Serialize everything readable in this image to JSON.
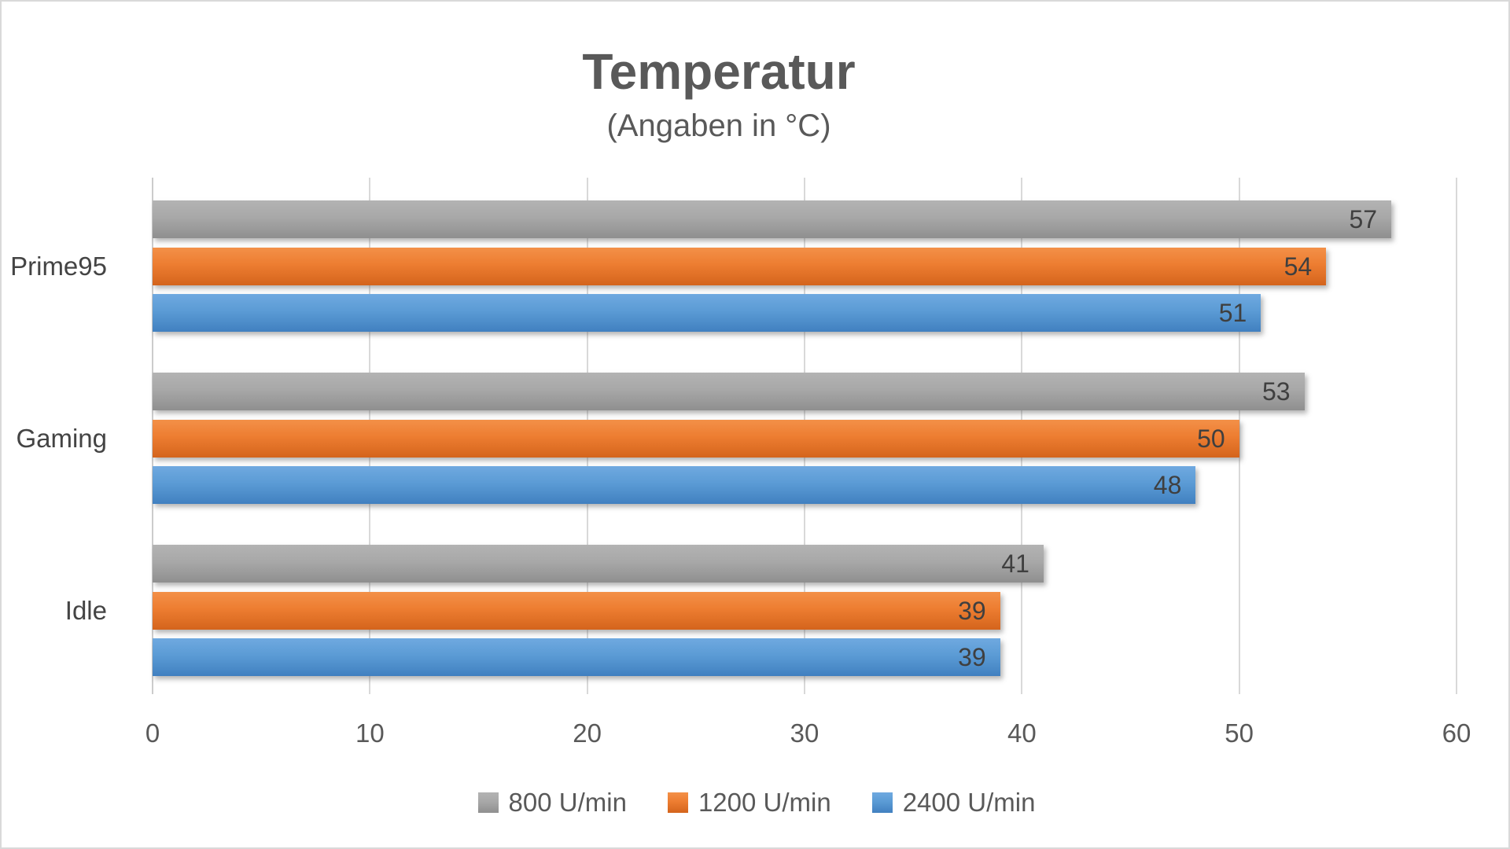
{
  "chart_data": {
    "type": "bar",
    "orientation": "horizontal",
    "title": "Temperatur",
    "subtitle": "(Angaben in °C)",
    "categories": [
      "Prime95",
      "Gaming",
      "Idle"
    ],
    "series": [
      {
        "name": "800 U/min",
        "color": "#a6a6a6",
        "gradient": [
          "#b3b3b3",
          "#a8a8a8",
          "#8f8f8f"
        ],
        "values": [
          57,
          53,
          41
        ]
      },
      {
        "name": "1200 U/min",
        "color": "#ed7d31",
        "gradient": [
          "#f39048",
          "#ed7d31",
          "#d4641c"
        ],
        "values": [
          54,
          50,
          39
        ]
      },
      {
        "name": "2400 U/min",
        "color": "#5b9bd5",
        "gradient": [
          "#6fa9e0",
          "#5b9bd5",
          "#4180c0"
        ],
        "values": [
          51,
          48,
          39
        ]
      }
    ],
    "xlabel": "",
    "ylabel": "",
    "xlim": [
      0,
      60
    ],
    "x_ticks": [
      0,
      10,
      20,
      30,
      40,
      50,
      60
    ],
    "grid": true,
    "data_labels": true,
    "legend_position": "bottom"
  },
  "colors": {
    "title_text": "#595959",
    "axis_tick_text": "#595959",
    "category_text": "#444444",
    "data_label_text": "#3f3f3f",
    "gridline": "#d9d9d9",
    "axis_line": "#cccccc",
    "chart_border": "#d9d9d9",
    "background": "#ffffff"
  }
}
